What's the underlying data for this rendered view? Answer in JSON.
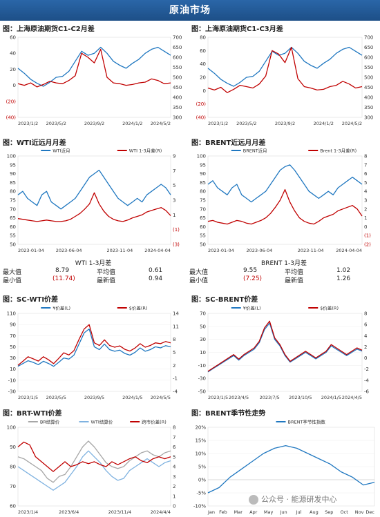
{
  "header": {
    "title": "原油市场"
  },
  "panels": {
    "p1": {
      "title": "图：上海原油期货C1-C2月差"
    },
    "p2": {
      "title": "图：上海原油期货C1-C3月差"
    },
    "p3": {
      "title": "图：WTI近远月月差"
    },
    "p4": {
      "title": "图：BRENT近远月月差"
    },
    "p5": {
      "title": "图：SC-WTI价差"
    },
    "p6": {
      "title": "图：SC-BRENT价差"
    },
    "p7": {
      "title": "图：BRT-WTI价差"
    },
    "p8": {
      "title": "图：BRENT季节性走势"
    }
  },
  "stats": {
    "wti": {
      "title": "WTI 1-3月差",
      "max_label": "最大值",
      "max": "8.79",
      "min_label": "最小值",
      "min": "(11.74)",
      "avg_label": "平均值",
      "avg": "0.61",
      "latest_label": "最新值",
      "latest": "0.94"
    },
    "brent": {
      "title": "BRENT 1-3月差",
      "max_label": "最大值",
      "max": "9.55",
      "min_label": "最小值",
      "min": "(7.25)",
      "avg_label": "平均值",
      "avg": "1.02",
      "latest_label": "最新值",
      "latest": "1.26"
    }
  },
  "watermark": "公众号 · 能源研发中心",
  "colors": {
    "blue": "#1f77c0",
    "red": "#c00000",
    "gray": "#a6a6a6",
    "lightblue": "#7fb2e0"
  },
  "chart_data": [
    {
      "id": "p1",
      "type": "line",
      "x_ticks": [
        "2023/1/2",
        "2023/5/2",
        "2023/9/2",
        "2024/1/2",
        "2024/5/2"
      ],
      "left_ticks": [
        "60",
        "40",
        "20",
        "0",
        "(20)",
        "(40)"
      ],
      "ylim_left": [
        -40,
        60
      ],
      "right_ticks": [
        "700",
        "650",
        "600",
        "550",
        "500",
        "450",
        "400",
        "350",
        "300"
      ],
      "ylim_right": [
        300,
        700
      ],
      "series": [
        {
          "axis": "right",
          "color": "#1f77c0",
          "values": [
            545,
            520,
            490,
            470,
            455,
            475,
            500,
            505,
            530,
            580,
            630,
            610,
            620,
            650,
            620,
            580,
            560,
            545,
            570,
            590,
            620,
            640,
            650,
            630,
            610
          ]
        },
        {
          "axis": "left",
          "color": "#c00000",
          "values": [
            2,
            0,
            3,
            -2,
            1,
            5,
            3,
            2,
            6,
            12,
            40,
            35,
            28,
            45,
            10,
            3,
            2,
            0,
            1,
            3,
            4,
            8,
            6,
            2,
            3
          ]
        }
      ]
    },
    {
      "id": "p2",
      "type": "line",
      "x_ticks": [
        "2023/1/2",
        "2023/5/2",
        "2023/9/2",
        "2024/1/2",
        "2024/5/2"
      ],
      "left_ticks": [
        "80",
        "60",
        "40",
        "20",
        "0",
        "(20)",
        "(40)"
      ],
      "ylim_left": [
        -40,
        80
      ],
      "right_ticks": [
        "700",
        "650",
        "600",
        "550",
        "500",
        "450",
        "400",
        "350",
        "300"
      ],
      "ylim_right": [
        300,
        700
      ],
      "series": [
        {
          "axis": "right",
          "color": "#1f77c0",
          "values": [
            545,
            520,
            490,
            470,
            455,
            475,
            500,
            505,
            530,
            580,
            630,
            610,
            620,
            650,
            620,
            580,
            560,
            545,
            570,
            590,
            620,
            640,
            650,
            630,
            610
          ]
        },
        {
          "axis": "left",
          "color": "#c00000",
          "values": [
            4,
            1,
            5,
            -3,
            2,
            8,
            6,
            4,
            10,
            22,
            60,
            55,
            42,
            65,
            18,
            6,
            4,
            1,
            2,
            6,
            8,
            14,
            10,
            4,
            6
          ]
        }
      ]
    },
    {
      "id": "p3",
      "type": "line",
      "x_ticks": [
        "2023-01-04",
        "2023-06-04",
        "2023-11-04",
        "2024-04-04"
      ],
      "left_ticks": [
        "100",
        "95",
        "90",
        "85",
        "80",
        "75",
        "70",
        "65",
        "60",
        "55",
        "50"
      ],
      "ylim_left": [
        50,
        100
      ],
      "right_ticks": [
        "9",
        "7",
        "5",
        "3",
        "1",
        "(1)",
        "(3)"
      ],
      "ylim_right": [
        -3,
        9
      ],
      "legend": [
        "WTI近月",
        "WTI 1-3月差(R)"
      ],
      "series": [
        {
          "name": "WTI近月",
          "axis": "left",
          "color": "#1f77c0",
          "values": [
            78,
            80,
            76,
            74,
            72,
            78,
            80,
            74,
            72,
            70,
            72,
            74,
            76,
            80,
            84,
            88,
            90,
            92,
            88,
            84,
            80,
            76,
            74,
            72,
            74,
            76,
            74,
            78,
            80,
            82,
            84,
            82,
            78
          ]
        },
        {
          "name": "WTI 1-3月差(R)",
          "axis": "right",
          "color": "#c00000",
          "values": [
            0.5,
            0.4,
            0.3,
            0.2,
            0.1,
            0.2,
            0.3,
            0.2,
            0.1,
            0.1,
            0.2,
            0.4,
            0.8,
            1.2,
            1.8,
            2.5,
            4.0,
            2.5,
            1.5,
            0.8,
            0.4,
            0.2,
            0.1,
            0.3,
            0.6,
            0.8,
            1.0,
            1.4,
            1.6,
            1.8,
            2.0,
            1.6,
            0.9
          ]
        }
      ]
    },
    {
      "id": "p4",
      "type": "line",
      "x_ticks": [
        "2023-01-04",
        "2023-06-04",
        "2023-11-04",
        "2024-04-04"
      ],
      "left_ticks": [
        "100",
        "95",
        "90",
        "85",
        "80",
        "75",
        "70",
        "65",
        "60",
        "55",
        "50"
      ],
      "ylim_left": [
        50,
        100
      ],
      "right_ticks": [
        "8",
        "7",
        "6",
        "5",
        "4",
        "3",
        "2",
        "1",
        "0",
        "(1)",
        "(2)"
      ],
      "ylim_right": [
        -2,
        8
      ],
      "legend": [
        "BRENT近月",
        "Brent 1-3月差(R)"
      ],
      "series": [
        {
          "name": "BRENT近月",
          "axis": "left",
          "color": "#1f77c0",
          "values": [
            84,
            86,
            82,
            80,
            78,
            82,
            84,
            78,
            76,
            74,
            76,
            78,
            80,
            84,
            88,
            92,
            94,
            95,
            92,
            88,
            84,
            80,
            78,
            76,
            78,
            80,
            78,
            82,
            84,
            86,
            88,
            86,
            84
          ]
        },
        {
          "name": "Brent 1-3月差(R)",
          "axis": "right",
          "color": "#c00000",
          "values": [
            0.6,
            0.7,
            0.5,
            0.4,
            0.3,
            0.5,
            0.7,
            0.6,
            0.4,
            0.3,
            0.5,
            0.7,
            1.0,
            1.5,
            2.2,
            3.0,
            4.2,
            2.8,
            1.8,
            1.0,
            0.6,
            0.4,
            0.3,
            0.6,
            1.0,
            1.2,
            1.4,
            1.8,
            2.0,
            2.2,
            2.4,
            2.0,
            1.2
          ]
        }
      ]
    },
    {
      "id": "p5",
      "type": "line",
      "x_ticks": [
        "2023/1/5",
        "2023/5/5",
        "2023/9/5",
        "2024/1/5",
        "2024/5/5"
      ],
      "left_ticks": [
        "110",
        "90",
        "70",
        "50",
        "30",
        "10",
        "-10",
        "-30"
      ],
      "ylim_left": [
        -30,
        110
      ],
      "right_ticks": [
        "14",
        "11",
        "8",
        "5",
        "2",
        "-1",
        "-4"
      ],
      "ylim_right": [
        -4,
        14
      ],
      "legend": [
        "¥价差(L)",
        "$价差(R)"
      ],
      "series": [
        {
          "name": "¥价差(L)",
          "axis": "left",
          "color": "#1f77c0",
          "values": [
            15,
            20,
            25,
            22,
            18,
            24,
            20,
            15,
            22,
            30,
            28,
            35,
            55,
            75,
            82,
            50,
            45,
            55,
            45,
            42,
            44,
            38,
            35,
            40,
            48,
            42,
            45,
            50,
            48,
            52,
            50
          ]
        },
        {
          "name": "$价差(R)",
          "axis": "right",
          "color": "#c00000",
          "values": [
            2,
            3,
            4,
            3.5,
            3,
            4,
            3.3,
            2.4,
            3.6,
            4.9,
            4.4,
            5.4,
            8,
            10.4,
            11.4,
            7.2,
            6.6,
            7.9,
            6.6,
            6.2,
            6.5,
            5.7,
            5.3,
            6,
            7,
            6.2,
            6.6,
            7.2,
            7,
            7.5,
            7.2
          ]
        }
      ]
    },
    {
      "id": "p6",
      "type": "line",
      "x_ticks": [
        "2023/1/5",
        "2023/4/5",
        "2023/7/5",
        "2023/10/5",
        "2024/1/5",
        "2024/4/5"
      ],
      "left_ticks": [
        "70",
        "50",
        "30",
        "10",
        "-10",
        "-30",
        "-50"
      ],
      "ylim_left": [
        -50,
        70
      ],
      "right_ticks": [
        "8",
        "6",
        "4",
        "2",
        "0",
        "-2",
        "-4",
        "-6"
      ],
      "ylim_right": [
        -6,
        8
      ],
      "legend": [
        "¥价差(L)",
        "$价差(R)"
      ],
      "series": [
        {
          "name": "¥价差(L)",
          "axis": "left",
          "color": "#1f77c0",
          "values": [
            -20,
            -15,
            -10,
            -5,
            0,
            5,
            -2,
            5,
            10,
            15,
            25,
            45,
            55,
            30,
            20,
            5,
            -5,
            0,
            5,
            10,
            5,
            0,
            5,
            10,
            20,
            15,
            10,
            5,
            10,
            15,
            12
          ]
        },
        {
          "name": "$价差(R)",
          "axis": "right",
          "color": "#c00000",
          "values": [
            -2.4,
            -1.8,
            -1.2,
            -0.6,
            0,
            0.6,
            -0.2,
            0.6,
            1.2,
            1.8,
            3,
            5.4,
            6.6,
            3.6,
            2.4,
            0.6,
            -0.6,
            0,
            0.6,
            1.2,
            0.6,
            0,
            0.6,
            1.2,
            2.4,
            1.8,
            1.2,
            0.6,
            1.2,
            1.8,
            1.4
          ]
        }
      ]
    },
    {
      "id": "p7",
      "type": "line",
      "x_ticks": [
        "2023/1/4",
        "2023/6/4",
        "2023/11/4",
        "2024/4/4"
      ],
      "left_ticks": [
        "100",
        "90",
        "80",
        "70",
        "60"
      ],
      "ylim_left": [
        60,
        100
      ],
      "right_ticks": [
        "8",
        "7",
        "6",
        "5",
        "4",
        "3",
        "2",
        "1",
        "0"
      ],
      "ylim_right": [
        0,
        8
      ],
      "legend": [
        "BR结算价",
        "WTI结算价",
        "跨市价差(R)"
      ],
      "series": [
        {
          "name": "BR结算价",
          "axis": "left",
          "color": "#a6a6a6",
          "values": [
            85,
            84,
            82,
            80,
            78,
            74,
            72,
            75,
            76,
            80,
            85,
            90,
            93,
            90,
            86,
            82,
            80,
            79,
            80,
            83,
            85,
            87,
            88,
            86,
            85,
            87,
            88
          ]
        },
        {
          "name": "WTI结算价",
          "axis": "left",
          "color": "#7fb2e0",
          "values": [
            80,
            78,
            76,
            74,
            72,
            70,
            68,
            70,
            72,
            76,
            80,
            85,
            88,
            85,
            82,
            78,
            75,
            73,
            74,
            78,
            80,
            82,
            84,
            82,
            80,
            82,
            83
          ]
        },
        {
          "name": "跨市价差(R)",
          "axis": "right",
          "color": "#c00000",
          "values": [
            6,
            6.5,
            6.2,
            5,
            4.5,
            4,
            3.5,
            4,
            4.5,
            4,
            4.2,
            4.5,
            4.3,
            4.5,
            4.2,
            4,
            4.5,
            4.2,
            4.5,
            4.8,
            5,
            4.6,
            4.4,
            4.8,
            5,
            4.8,
            5
          ]
        }
      ]
    },
    {
      "id": "p8",
      "type": "line",
      "x_ticks": [
        "Jan",
        "Feb",
        "Mar",
        "Apr",
        "May",
        "Jun",
        "Jul",
        "Aug",
        "Sep",
        "Oct",
        "Nov",
        "Dec"
      ],
      "left_ticks": [
        "20%",
        "15%",
        "10%",
        "5%",
        "0%",
        "-5%",
        "-10%"
      ],
      "ylim_left": [
        -10,
        20
      ],
      "legend": [
        "BRENT季节性指数"
      ],
      "series": [
        {
          "name": "BRENT季节性指数",
          "axis": "left",
          "color": "#1f77c0",
          "values": [
            -5,
            -3,
            1,
            4,
            7,
            10,
            12,
            13,
            12,
            10,
            8,
            6,
            3,
            1,
            -2,
            -1
          ]
        }
      ]
    }
  ]
}
